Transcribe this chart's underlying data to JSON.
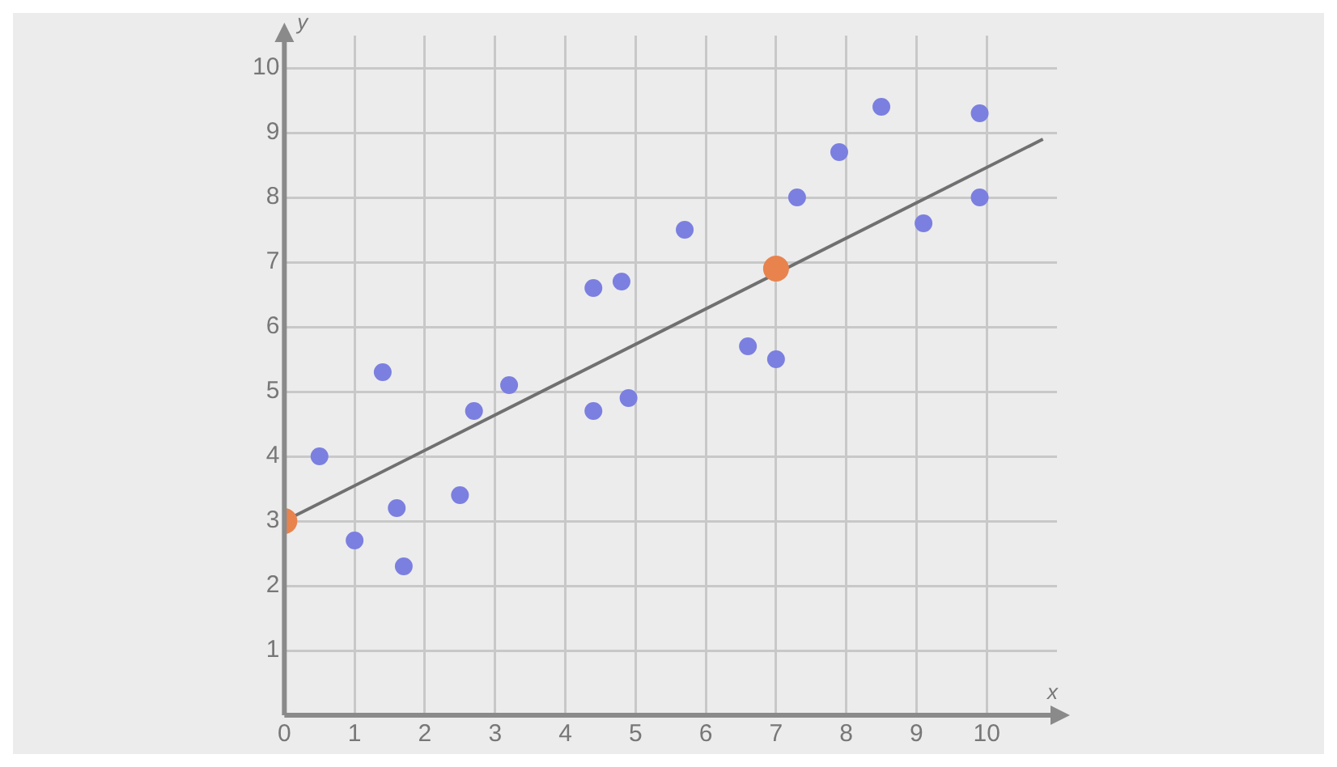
{
  "chart_data": {
    "type": "scatter",
    "xlabel": "x",
    "ylabel": "y",
    "xlim": [
      0,
      11
    ],
    "ylim": [
      0,
      10.5
    ],
    "xticks": [
      0,
      1,
      2,
      3,
      4,
      5,
      6,
      7,
      8,
      9,
      10
    ],
    "yticks": [
      1,
      2,
      3,
      4,
      5,
      6,
      7,
      8,
      9,
      10
    ],
    "grid": true,
    "marker": "circle",
    "series": [
      {
        "type": "scatter",
        "color": "#7b7fe0",
        "x": [
          0.5,
          1.0,
          1.4,
          1.6,
          1.7,
          2.5,
          2.7,
          3.2,
          4.4,
          4.8,
          4.4,
          4.9,
          5.7,
          6.6,
          7.0,
          7.3,
          7.9,
          8.5,
          9.1,
          9.9,
          9.9
        ],
        "values": [
          4.0,
          2.7,
          5.3,
          3.2,
          2.3,
          3.4,
          4.7,
          5.1,
          6.6,
          6.7,
          4.7,
          4.9,
          7.5,
          5.7,
          5.5,
          8.0,
          8.7,
          9.4,
          7.6,
          9.3,
          8.0
        ]
      },
      {
        "type": "line",
        "color": "#707070",
        "x": [
          0,
          10.8
        ],
        "values": [
          3,
          8.9
        ],
        "marker": "none"
      },
      {
        "type": "scatter",
        "color": "#e8834e",
        "x": [
          0,
          7
        ],
        "values": [
          3,
          6.9
        ]
      }
    ]
  }
}
